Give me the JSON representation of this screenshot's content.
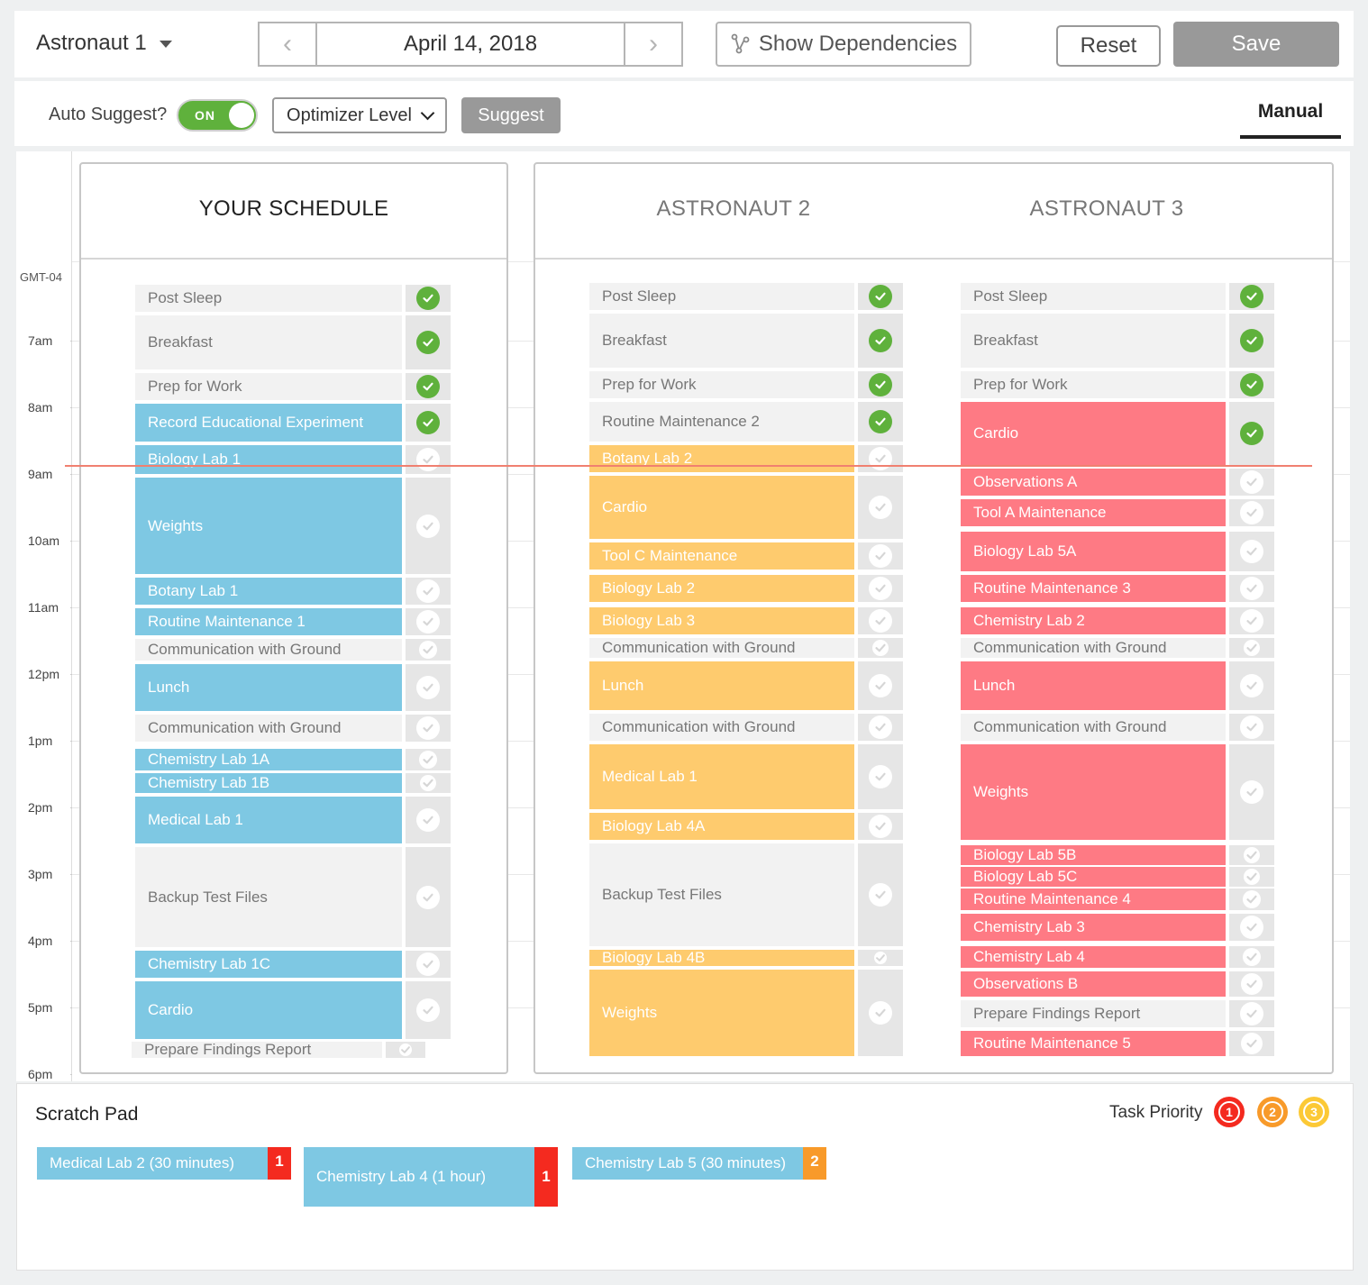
{
  "header": {
    "astronaut_select": "Astronaut 1",
    "date": "April 14, 2018",
    "prev_arrow": "‹",
    "next_arrow": "›",
    "show_dependencies": "Show Dependencies",
    "reset": "Reset",
    "save": "Save"
  },
  "toolbar": {
    "auto_suggest_label": "Auto Suggest?",
    "toggle_state": "ON",
    "optimizer_level": "Optimizer Level",
    "suggest": "Suggest",
    "manual_tab": "Manual"
  },
  "timeline": {
    "timezone": "GMT-04",
    "hours": [
      "7am",
      "8am",
      "9am",
      "10am",
      "11am",
      "12pm",
      "1pm",
      "2pm",
      "3pm",
      "4pm",
      "5pm",
      "6pm"
    ]
  },
  "columns": [
    {
      "title": "YOUR SCHEDULE",
      "accent": "#7ec8e3",
      "tasks": [
        {
          "name": "Post Sleep",
          "kind": "gray",
          "done": true
        },
        {
          "name": "Breakfast",
          "kind": "gray",
          "done": true
        },
        {
          "name": "Prep for Work",
          "kind": "gray",
          "done": true
        },
        {
          "name": "Record Educational Experiment",
          "kind": "color",
          "done": true
        },
        {
          "name": "Biology Lab 1",
          "kind": "color",
          "done": false
        },
        {
          "name": "Weights",
          "kind": "color",
          "done": false
        },
        {
          "name": "Botany Lab 1",
          "kind": "color",
          "done": false
        },
        {
          "name": "Routine Maintenance 1",
          "kind": "color",
          "done": false
        },
        {
          "name": "Communication with Ground",
          "kind": "gray",
          "done": false
        },
        {
          "name": "Lunch",
          "kind": "color",
          "done": false
        },
        {
          "name": "Communication with Ground",
          "kind": "gray",
          "done": false
        },
        {
          "name": "Chemistry Lab 1A",
          "kind": "color",
          "done": false
        },
        {
          "name": "Chemistry Lab 1B",
          "kind": "color",
          "done": false
        },
        {
          "name": "Medical Lab 1",
          "kind": "color",
          "done": false
        },
        {
          "name": "Backup Test Files",
          "kind": "gray",
          "done": false
        },
        {
          "name": "Chemistry Lab 1C",
          "kind": "color",
          "done": false
        },
        {
          "name": "Cardio",
          "kind": "color",
          "done": false
        },
        {
          "name": "Prepare Findings Report",
          "kind": "gray",
          "done": false
        }
      ]
    },
    {
      "title": "ASTRONAUT 2",
      "accent": "#fecb6e",
      "tasks": [
        {
          "name": "Post Sleep",
          "kind": "gray",
          "done": true
        },
        {
          "name": "Breakfast",
          "kind": "gray",
          "done": true
        },
        {
          "name": "Prep for Work",
          "kind": "gray",
          "done": true
        },
        {
          "name": "Routine Maintenance 2",
          "kind": "gray",
          "done": true
        },
        {
          "name": "Botany Lab 2",
          "kind": "color",
          "done": false
        },
        {
          "name": "Cardio",
          "kind": "color",
          "done": false
        },
        {
          "name": "Tool C Maintenance",
          "kind": "color",
          "done": false
        },
        {
          "name": "Biology Lab 2",
          "kind": "color",
          "done": false
        },
        {
          "name": "Biology Lab 3",
          "kind": "color",
          "done": false
        },
        {
          "name": "Communication with Ground",
          "kind": "gray",
          "done": false
        },
        {
          "name": "Lunch",
          "kind": "color",
          "done": false
        },
        {
          "name": "Communication with Ground",
          "kind": "gray",
          "done": false
        },
        {
          "name": "Medical Lab 1",
          "kind": "color",
          "done": false
        },
        {
          "name": "Biology Lab 4A",
          "kind": "color",
          "done": false
        },
        {
          "name": "Backup Test Files",
          "kind": "gray",
          "done": false
        },
        {
          "name": "Biology Lab 4B",
          "kind": "color",
          "done": false
        },
        {
          "name": "Weights",
          "kind": "color",
          "done": false
        }
      ]
    },
    {
      "title": "ASTRONAUT 3",
      "accent": "#fe7a84",
      "tasks": [
        {
          "name": "Post Sleep",
          "kind": "gray",
          "done": true
        },
        {
          "name": "Breakfast",
          "kind": "gray",
          "done": true
        },
        {
          "name": "Prep for Work",
          "kind": "gray",
          "done": true
        },
        {
          "name": "Cardio",
          "kind": "color",
          "done": true
        },
        {
          "name": "Observations A",
          "kind": "color",
          "done": false
        },
        {
          "name": "Tool A Maintenance",
          "kind": "color",
          "done": false
        },
        {
          "name": "Biology Lab 5A",
          "kind": "color",
          "done": false
        },
        {
          "name": "Routine Maintenance 3",
          "kind": "color",
          "done": false
        },
        {
          "name": "Chemistry Lab 2",
          "kind": "color",
          "done": false
        },
        {
          "name": "Communication with Ground",
          "kind": "gray",
          "done": false
        },
        {
          "name": "Lunch",
          "kind": "color",
          "done": false
        },
        {
          "name": "Communication with Ground",
          "kind": "gray",
          "done": false
        },
        {
          "name": "Weights",
          "kind": "color",
          "done": false
        },
        {
          "name": "Biology Lab 5B",
          "kind": "color",
          "done": false
        },
        {
          "name": "Biology Lab 5C",
          "kind": "color",
          "done": false
        },
        {
          "name": "Routine Maintenance 4",
          "kind": "color",
          "done": false
        },
        {
          "name": "Chemistry Lab 3",
          "kind": "color",
          "done": false
        },
        {
          "name": "Chemistry Lab 4",
          "kind": "color",
          "done": false
        },
        {
          "name": "Observations B",
          "kind": "color",
          "done": false
        },
        {
          "name": "Prepare Findings Report",
          "kind": "gray",
          "done": false
        },
        {
          "name": "Routine Maintenance 5",
          "kind": "color",
          "done": false
        }
      ]
    }
  ],
  "scratch_pad": {
    "title": "Scratch Pad",
    "priority_label": "Task Priority",
    "priorities": [
      {
        "num": "1",
        "color": "#f42a1f"
      },
      {
        "num": "2",
        "color": "#f89a2a"
      },
      {
        "num": "3",
        "color": "#fcc936"
      }
    ],
    "items": [
      {
        "name": "Medical Lab 2 (30 minutes)",
        "priority": "1",
        "priority_color": "#f42a1f"
      },
      {
        "name": "Chemistry Lab 4 (1 hour)",
        "priority": "1",
        "priority_color": "#f42a1f"
      },
      {
        "name": "Chemistry Lab 5  (30 minutes)",
        "priority": "2",
        "priority_color": "#f89a2a"
      }
    ]
  }
}
